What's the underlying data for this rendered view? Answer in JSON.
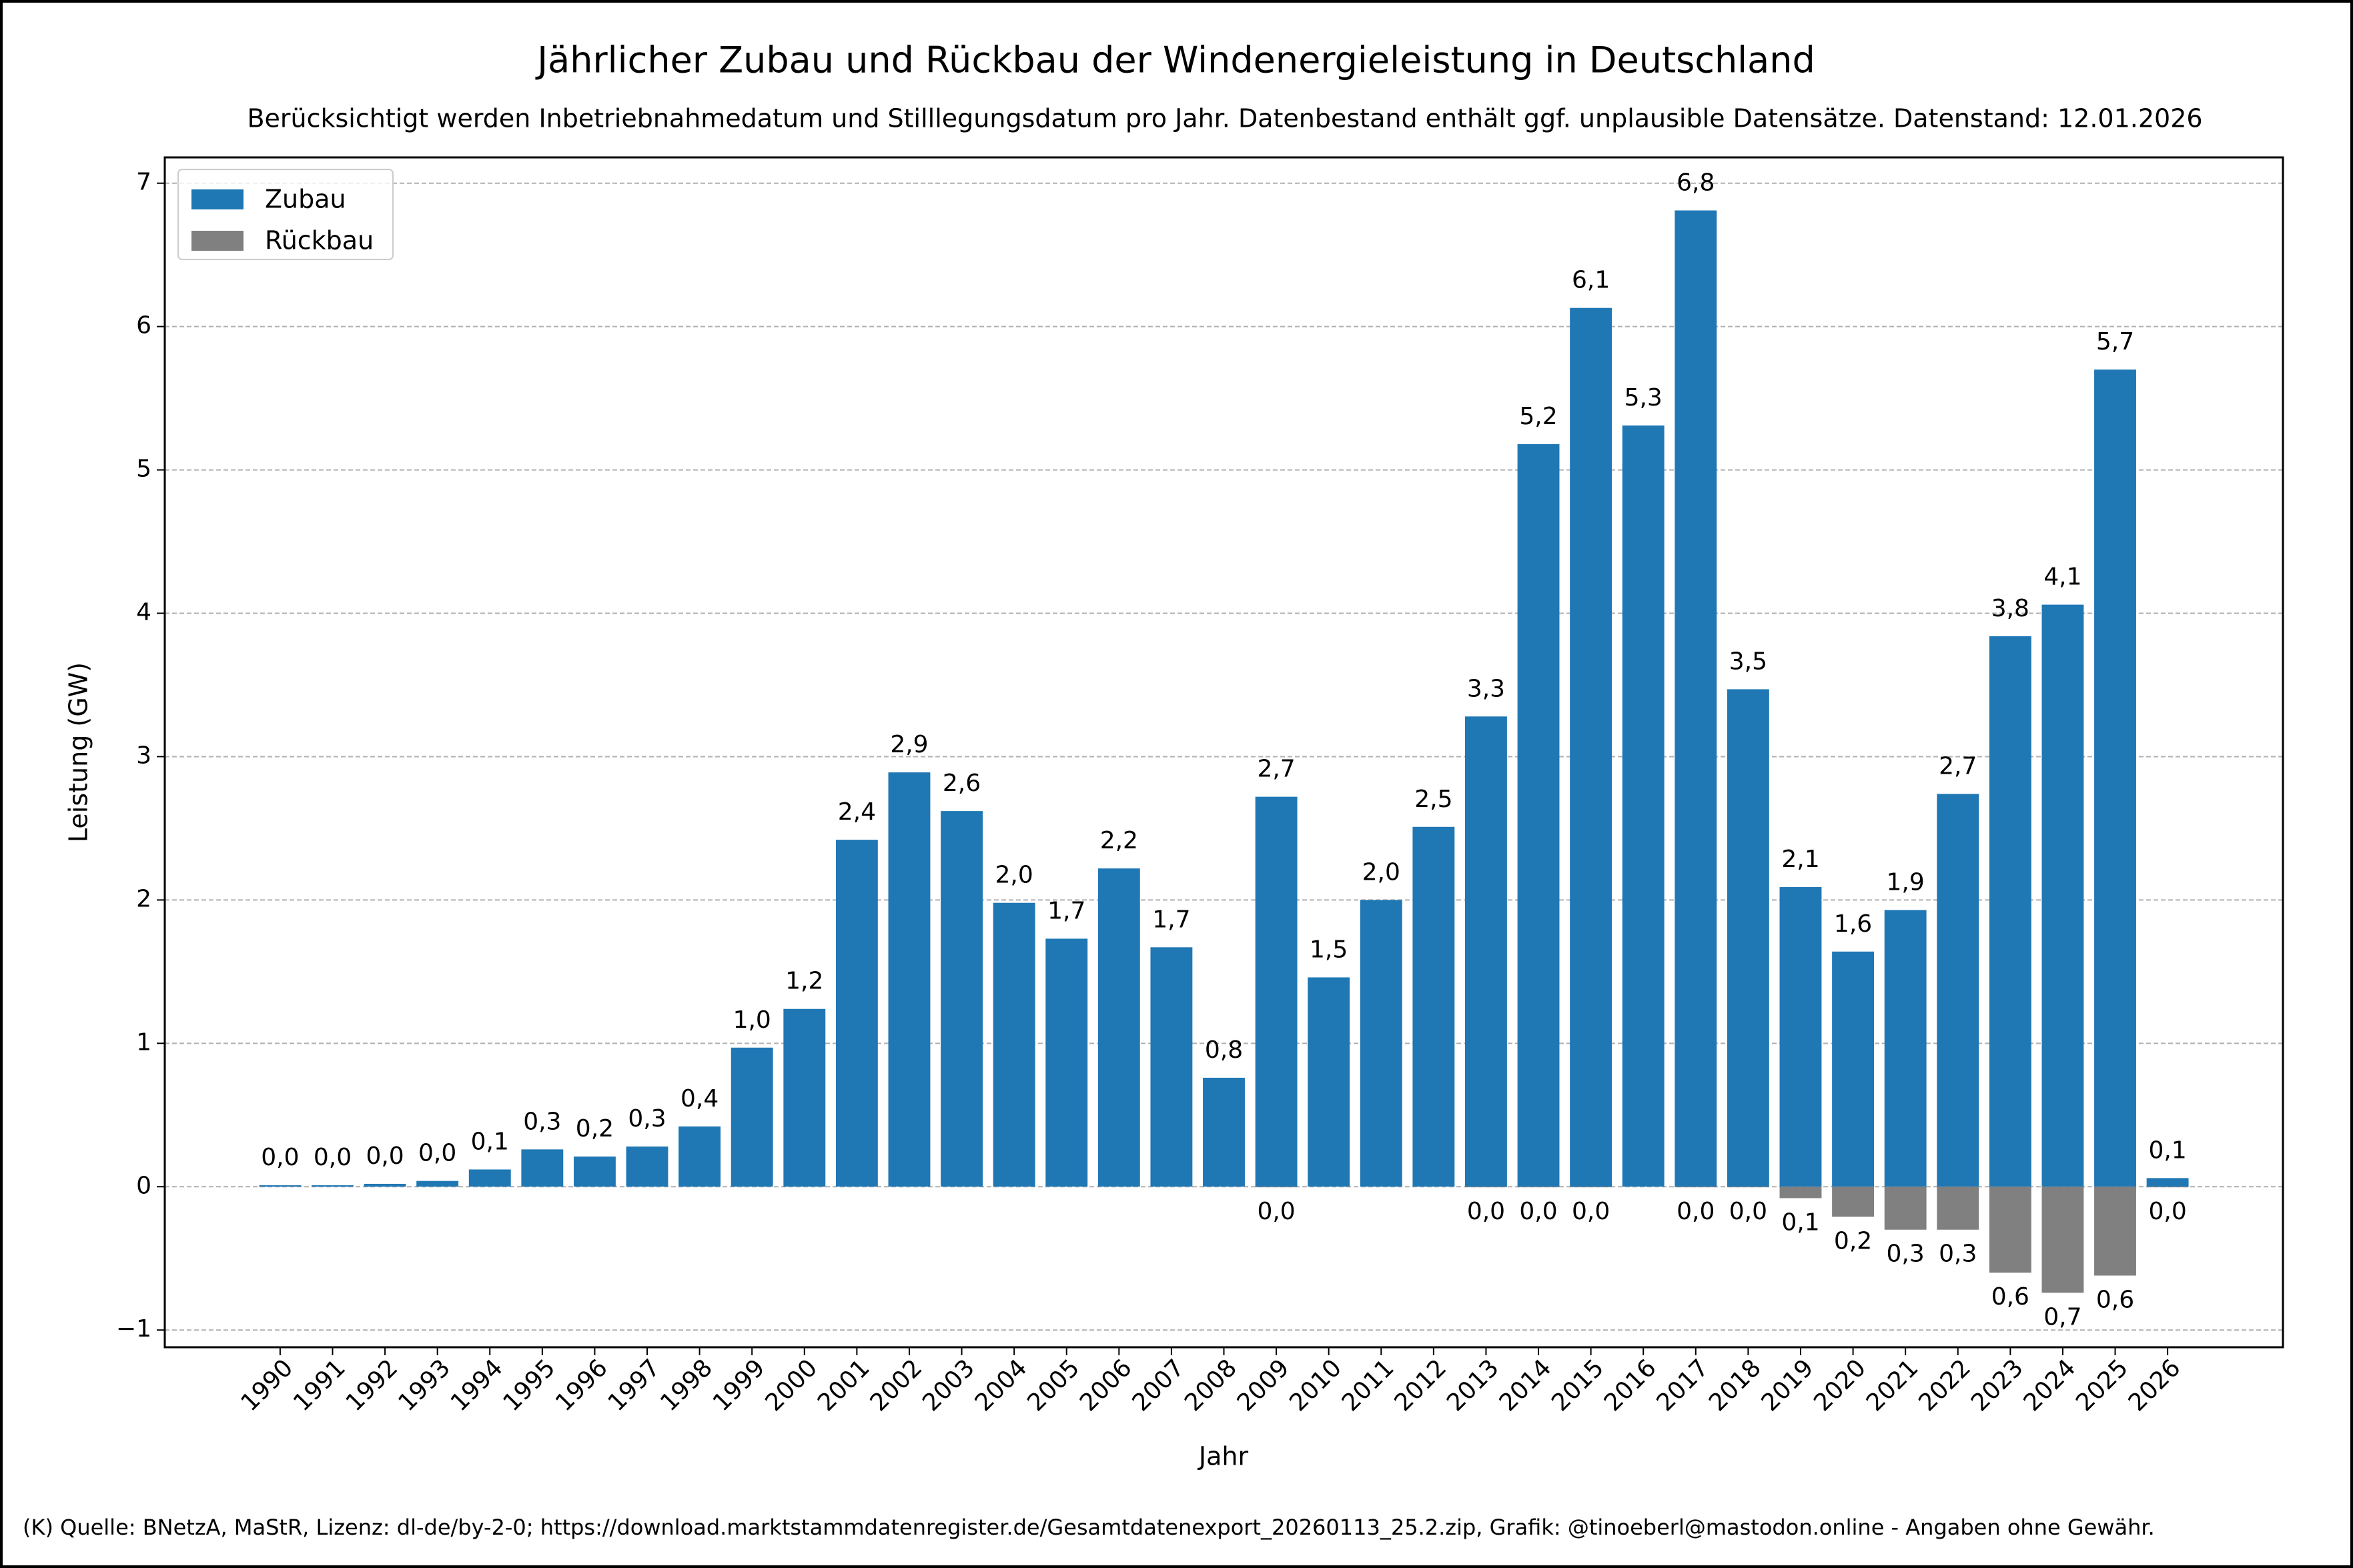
{
  "chart_data": {
    "type": "bar",
    "title": "Jährlicher Zubau und Rückbau der Windenergieleistung in Deutschland",
    "subtitle": "Berücksichtigt werden Inbetriebnahmedatum und Stilllegungsdatum pro Jahr. Datenbestand enthält ggf. unplausible Datensätze. Datenstand: 12.01.2026",
    "x_label": "Jahr",
    "y_label": "Leistung (GW)",
    "footer": "(K) Quelle: BNetzA, MaStR, Lizenz: dl-de/by-2-0; https://download.marktstammdatenregister.de/Gesamtdatenexport_20260113_25.2.zip, Grafik: @tinoeberl@mastodon.online - Angaben ohne Gewähr.",
    "categories": [
      "1990",
      "1991",
      "1992",
      "1993",
      "1994",
      "1995",
      "1996",
      "1997",
      "1998",
      "1999",
      "2000",
      "2001",
      "2002",
      "2003",
      "2004",
      "2005",
      "2006",
      "2007",
      "2008",
      "2009",
      "2010",
      "2011",
      "2012",
      "2013",
      "2014",
      "2015",
      "2016",
      "2017",
      "2018",
      "2019",
      "2020",
      "2021",
      "2022",
      "2023",
      "2024",
      "2025",
      "2026"
    ],
    "series": [
      {
        "name": "Zubau",
        "color": "#1f77b4",
        "values": [
          0.01,
          0.01,
          0.02,
          0.04,
          0.12,
          0.26,
          0.21,
          0.28,
          0.42,
          0.97,
          1.24,
          2.42,
          2.89,
          2.62,
          1.98,
          1.73,
          2.22,
          1.67,
          0.76,
          2.72,
          1.46,
          2.0,
          2.51,
          3.28,
          5.18,
          6.13,
          5.31,
          6.81,
          3.47,
          2.09,
          1.64,
          1.93,
          2.74,
          3.84,
          4.06,
          5.7,
          0.06
        ],
        "value_labels": [
          "0,0",
          "0,0",
          "0,0",
          "0,0",
          "0,1",
          "0,3",
          "0,2",
          "0,3",
          "0,4",
          "1,0",
          "1,2",
          "2,4",
          "2,9",
          "2,6",
          "2,0",
          "1,7",
          "2,2",
          "1,7",
          "0,8",
          "2,7",
          "1,5",
          "2,0",
          "2,5",
          "3,3",
          "5,2",
          "6,1",
          "5,3",
          "6,8",
          "3,5",
          "2,1",
          "1,6",
          "1,9",
          "2,7",
          "3,8",
          "4,1",
          "5,7",
          "0,1"
        ]
      },
      {
        "name": "Rückbau",
        "color": "#808080",
        "values": [
          null,
          null,
          null,
          null,
          null,
          null,
          null,
          null,
          null,
          null,
          null,
          null,
          null,
          null,
          null,
          null,
          null,
          null,
          null,
          -0.004,
          null,
          null,
          null,
          -0.004,
          -0.004,
          -0.004,
          null,
          -0.004,
          -0.004,
          -0.08,
          -0.21,
          -0.3,
          -0.3,
          -0.6,
          -0.74,
          -0.62,
          -0.004
        ],
        "value_labels": [
          null,
          null,
          null,
          null,
          null,
          null,
          null,
          null,
          null,
          null,
          null,
          null,
          null,
          null,
          null,
          null,
          null,
          null,
          null,
          "0,0",
          null,
          null,
          null,
          "0,0",
          "0,0",
          "0,0",
          null,
          "0,0",
          "0,0",
          "0,1",
          "0,2",
          "0,3",
          "0,3",
          "0,6",
          "0,7",
          "0,6",
          "0,0"
        ]
      }
    ],
    "ylim": [
      -1.12,
      7.18
    ],
    "yticks": [
      {
        "value": -1,
        "label": "−1"
      },
      0,
      1,
      2,
      3,
      4,
      5,
      6,
      7
    ],
    "grid": true,
    "legend": "upper left"
  }
}
